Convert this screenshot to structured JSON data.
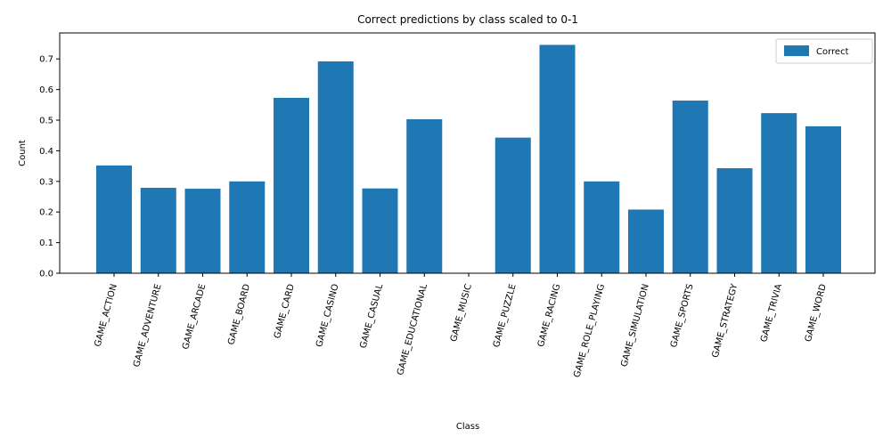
{
  "chart_data": {
    "type": "bar",
    "title": "Correct predictions by class scaled to 0-1",
    "xlabel": "Class",
    "ylabel": "Count",
    "ylim": [
      0,
      0.785
    ],
    "yticks": [
      0.0,
      0.1,
      0.2,
      0.3,
      0.4,
      0.5,
      0.6,
      0.7
    ],
    "ytick_labels": [
      "0.0",
      "0.1",
      "0.2",
      "0.3",
      "0.4",
      "0.5",
      "0.6",
      "0.7"
    ],
    "categories": [
      "GAME_ACTION",
      "GAME_ADVENTURE",
      "GAME_ARCADE",
      "GAME_BOARD",
      "GAME_CARD",
      "GAME_CASINO",
      "GAME_CASUAL",
      "GAME_EDUCATIONAL",
      "GAME_MUSIC",
      "GAME_PUZZLE",
      "GAME_RACING",
      "GAME_ROLE_PLAYING",
      "GAME_SIMULATION",
      "GAME_SPORTS",
      "GAME_STRATEGY",
      "GAME_TRIVIA",
      "GAME_WORD"
    ],
    "series": [
      {
        "name": "Correct",
        "color": "#1f77b4",
        "values": [
          0.352,
          0.279,
          0.276,
          0.3,
          0.573,
          0.692,
          0.277,
          0.503,
          0.0,
          0.443,
          0.746,
          0.3,
          0.208,
          0.564,
          0.343,
          0.523,
          0.48
        ]
      }
    ],
    "legend": {
      "position": "top-right",
      "entries": [
        "Correct"
      ]
    },
    "grid": false
  }
}
